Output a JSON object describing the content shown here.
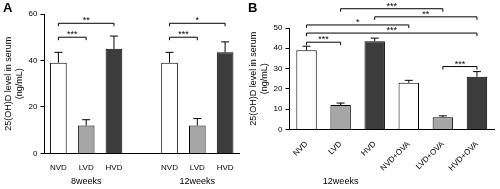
{
  "chart_data": [
    {
      "type": "bar",
      "panel_label": "A",
      "y_label": [
        "25(OH)D level in serum",
        "(ng/mL)"
      ],
      "categories": [
        "NVD",
        "LVD",
        "HVD",
        null,
        "NVD",
        "LVD",
        "HVD"
      ],
      "values": [
        39,
        12,
        45,
        null,
        39,
        12,
        43.5
      ],
      "errors": [
        4.5,
        2.5,
        5.5,
        null,
        4.5,
        3,
        4.5
      ],
      "colors": [
        "#ffffff",
        "#a6a6a6",
        "#3c3c3c",
        null,
        "#ffffff",
        "#a6a6a6",
        "#3c3c3c"
      ],
      "ylim": [
        0,
        60
      ],
      "yticks": [
        0,
        20,
        40,
        60
      ],
      "grid": false,
      "groups": [
        {
          "label": "8weeks",
          "from": 0,
          "to": 2
        },
        {
          "label": "12weeks",
          "from": 4,
          "to": 6
        }
      ],
      "annotations": [
        {
          "from": 0,
          "to": 1,
          "y": 50,
          "text": "***"
        },
        {
          "from": 0,
          "to": 2,
          "y": 56,
          "text": "**"
        },
        {
          "from": 4,
          "to": 5,
          "y": 50,
          "text": "***"
        },
        {
          "from": 4,
          "to": 6,
          "y": 56,
          "text": "*"
        }
      ]
    },
    {
      "type": "bar",
      "panel_label": "B",
      "y_label": [
        "25(OH)D level in serum",
        "(ng/mL)"
      ],
      "categories": [
        "NVD",
        "LVD",
        "HVD",
        "NVD+OVA",
        "LVD+OVA",
        "HVD+OVA"
      ],
      "values": [
        39,
        12,
        43.5,
        23,
        6,
        26
      ],
      "errors": [
        2,
        1,
        1.5,
        1.2,
        0.7,
        2.5
      ],
      "colors": [
        "#ffffff",
        "#a6a6a6",
        "#3c3c3c",
        "#ffffff",
        "#a6a6a6",
        "#3c3c3c"
      ],
      "ylim": [
        0,
        50
      ],
      "yticks": [
        0,
        10,
        20,
        30,
        40,
        50
      ],
      "grid": false,
      "groups": [
        {
          "label": "12weeks",
          "from": 0,
          "to": 2
        }
      ],
      "annotations": [
        {
          "from": 0,
          "to": 1,
          "y": 43,
          "text": "***"
        },
        {
          "from": 0,
          "to": 5,
          "y": 47.5,
          "text": "***"
        },
        {
          "from": 0,
          "to": 3,
          "y": 51.5,
          "text": "*"
        },
        {
          "from": 2,
          "to": 5,
          "y": 55.5,
          "text": "**"
        },
        {
          "from": 1,
          "to": 4,
          "y": 59.5,
          "text": "***"
        },
        {
          "from": 4,
          "to": 5,
          "y": 31,
          "text": "***"
        }
      ]
    }
  ]
}
